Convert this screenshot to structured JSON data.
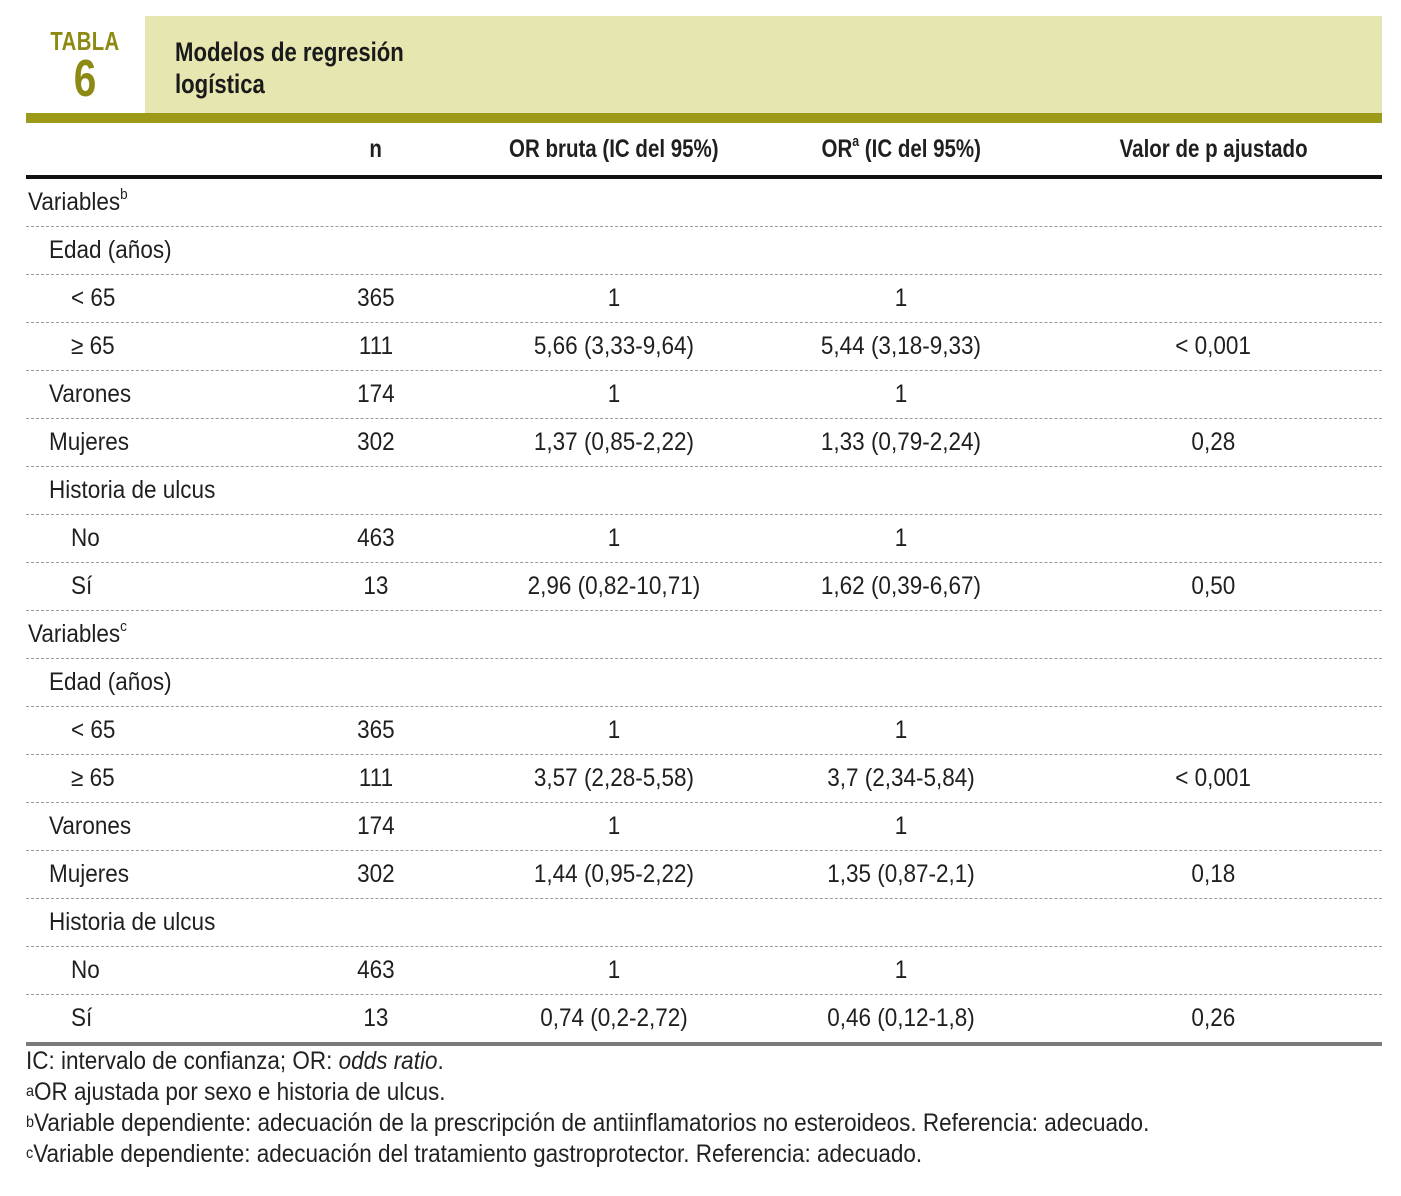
{
  "header": {
    "badge_label": "TABLA",
    "badge_number": "6",
    "title_line1": "Modelos de regresión",
    "title_line2": "logística"
  },
  "columns": {
    "n": "n",
    "or_crude": "OR bruta (IC del 95%)",
    "or_adj_prefix": "OR",
    "or_adj_sup": "a",
    "or_adj_suffix": " (IC del 95%)",
    "p_adj": "Valor de p ajustado"
  },
  "rows": [
    {
      "label": "Variables",
      "sup": "b",
      "level": 0,
      "n": "",
      "or": "",
      "ora": "",
      "p": ""
    },
    {
      "label": "Edad (años)",
      "level": 1,
      "n": "",
      "or": "",
      "ora": "",
      "p": ""
    },
    {
      "label": "< 65",
      "level": 2,
      "n": "365",
      "or": "1",
      "ora": "1",
      "p": ""
    },
    {
      "label": "≥ 65",
      "level": 2,
      "n": "111",
      "or": "5,66 (3,33-9,64)",
      "ora": "5,44 (3,18-9,33)",
      "p": "< 0,001"
    },
    {
      "label": "Varones",
      "level": 1,
      "n": "174",
      "or": "1",
      "ora": "1",
      "p": ""
    },
    {
      "label": "Mujeres",
      "level": 1,
      "n": "302",
      "or": "1,37 (0,85-2,22)",
      "ora": "1,33 (0,79-2,24)",
      "p": "0,28"
    },
    {
      "label": "Historia de ulcus",
      "level": 1,
      "n": "",
      "or": "",
      "ora": "",
      "p": ""
    },
    {
      "label": "No",
      "level": 2,
      "n": "463",
      "or": "1",
      "ora": "1",
      "p": ""
    },
    {
      "label": "Sí",
      "level": 2,
      "n": "13",
      "or": "2,96 (0,82-10,71)",
      "ora": "1,62 (0,39-6,67)",
      "p": "0,50"
    },
    {
      "label": "Variables",
      "sup": "c",
      "level": 0,
      "n": "",
      "or": "",
      "ora": "",
      "p": ""
    },
    {
      "label": "Edad (años)",
      "level": 1,
      "n": "",
      "or": "",
      "ora": "",
      "p": ""
    },
    {
      "label": "< 65",
      "level": 2,
      "n": "365",
      "or": "1",
      "ora": "1",
      "p": ""
    },
    {
      "label": "≥ 65",
      "level": 2,
      "n": "111",
      "or": "3,57 (2,28-5,58)",
      "ora": "3,7 (2,34-5,84)",
      "p": "< 0,001"
    },
    {
      "label": "Varones",
      "level": 1,
      "n": "174",
      "or": "1",
      "ora": "1",
      "p": ""
    },
    {
      "label": "Mujeres",
      "level": 1,
      "n": "302",
      "or": "1,44 (0,95-2,22)",
      "ora": "1,35 (0,87-2,1)",
      "p": "0,18"
    },
    {
      "label": "Historia de ulcus",
      "level": 1,
      "n": "",
      "or": "",
      "ora": "",
      "p": ""
    },
    {
      "label": "No",
      "level": 2,
      "n": "463",
      "or": "1",
      "ora": "1",
      "p": ""
    },
    {
      "label": "Sí",
      "level": 2,
      "n": "13",
      "or": "0,74 (0,2-2,72)",
      "ora": "0,46 (0,12-1,8)",
      "p": "0,26"
    }
  ],
  "notes": {
    "line1_text": "IC: intervalo de confianza; OR: ",
    "line1_italic": "odds ratio",
    "line1_end": ".",
    "line2_sup": "a",
    "line2_text": "OR ajustada por sexo e historia de ulcus.",
    "line3_sup": "b",
    "line3_text": "Variable dependiente: adecuación de la prescripción de antiinflamatorios no esteroideos. Referencia: adecuado.",
    "line4_sup": "c",
    "line4_text": "Variable dependiente: adecuación del tratamiento gastroprotector. Referencia: adecuado."
  }
}
